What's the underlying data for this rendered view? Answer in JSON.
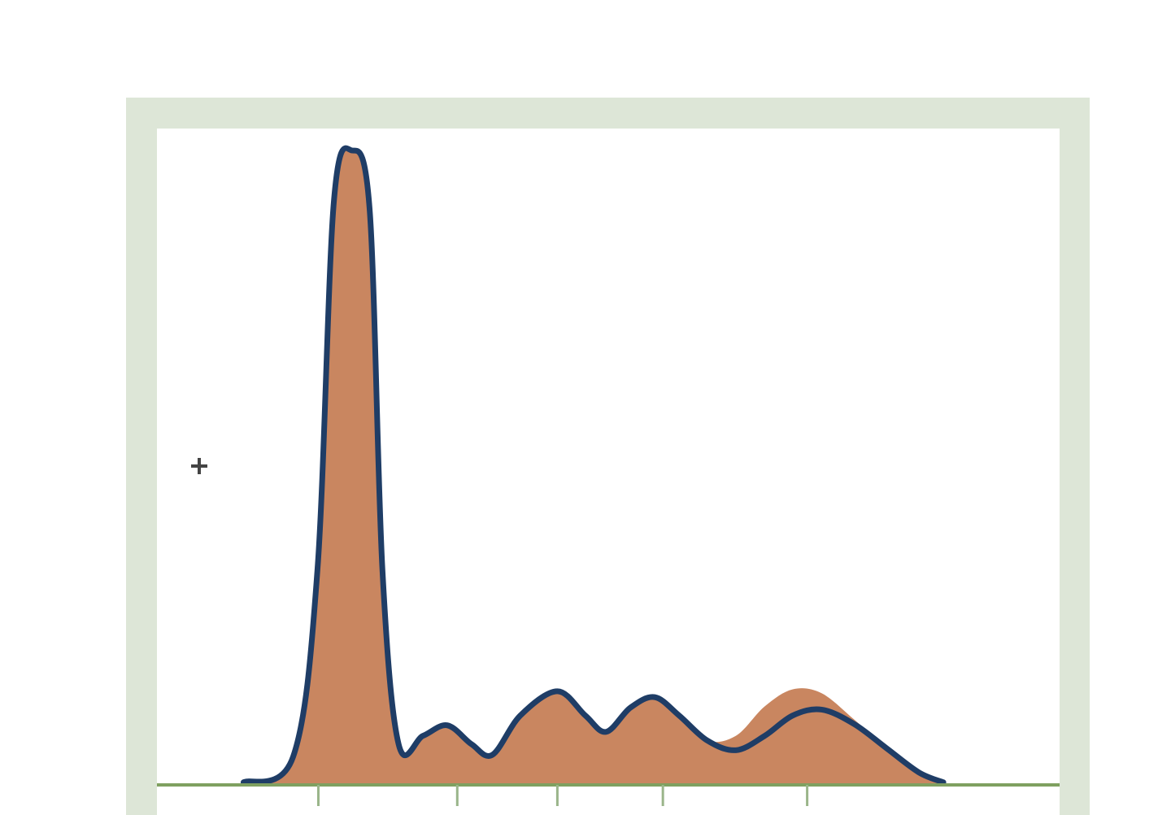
{
  "chart_data": {
    "type": "area",
    "title": "",
    "xlabel": "",
    "ylabel": "",
    "xlim": [
      0,
      100
    ],
    "ylim": [
      0,
      1
    ],
    "grid": false,
    "x_ticks": [
      17.9,
      33.3,
      44.4,
      56.1,
      72.1
    ],
    "colors": {
      "fill": "#c98660",
      "line": "#1f3d66",
      "frame": "#dde6d7",
      "baseline": "#7fa060",
      "tick": "#9ab58a"
    },
    "series": [
      {
        "role": "filled",
        "x": [
          9.6,
          15.1,
          17.8,
          19.6,
          21.6,
          23.6,
          25.0,
          26.8,
          29.5,
          32.2,
          34.9,
          37.2,
          40.3,
          44.4,
          47.5,
          49.8,
          52.5,
          55.2,
          57.9,
          61.0,
          64.2,
          67.4,
          70.5,
          73.7,
          77.3,
          80.9,
          84.5,
          87.2
        ],
        "y": [
          0.004,
          0.043,
          0.329,
          0.888,
          0.969,
          0.876,
          0.329,
          0.062,
          0.075,
          0.091,
          0.062,
          0.046,
          0.106,
          0.143,
          0.106,
          0.081,
          0.118,
          0.134,
          0.106,
          0.068,
          0.075,
          0.12,
          0.146,
          0.14,
          0.1,
          0.056,
          0.019,
          0.004
        ]
      },
      {
        "role": "outline",
        "x": [
          9.6,
          15.1,
          17.8,
          19.6,
          21.6,
          23.6,
          25.0,
          26.8,
          29.5,
          32.2,
          34.9,
          37.2,
          40.3,
          44.4,
          47.5,
          49.8,
          52.5,
          55.2,
          57.9,
          61.0,
          64.2,
          67.4,
          70.5,
          73.7,
          77.3,
          80.9,
          84.5,
          87.2
        ],
        "y": [
          0.004,
          0.043,
          0.329,
          0.888,
          0.969,
          0.876,
          0.329,
          0.062,
          0.075,
          0.091,
          0.062,
          0.046,
          0.106,
          0.143,
          0.106,
          0.081,
          0.118,
          0.134,
          0.106,
          0.068,
          0.053,
          0.075,
          0.106,
          0.115,
          0.093,
          0.056,
          0.019,
          0.004
        ]
      }
    ]
  },
  "cursor": {
    "icon": "crosshair-icon"
  }
}
